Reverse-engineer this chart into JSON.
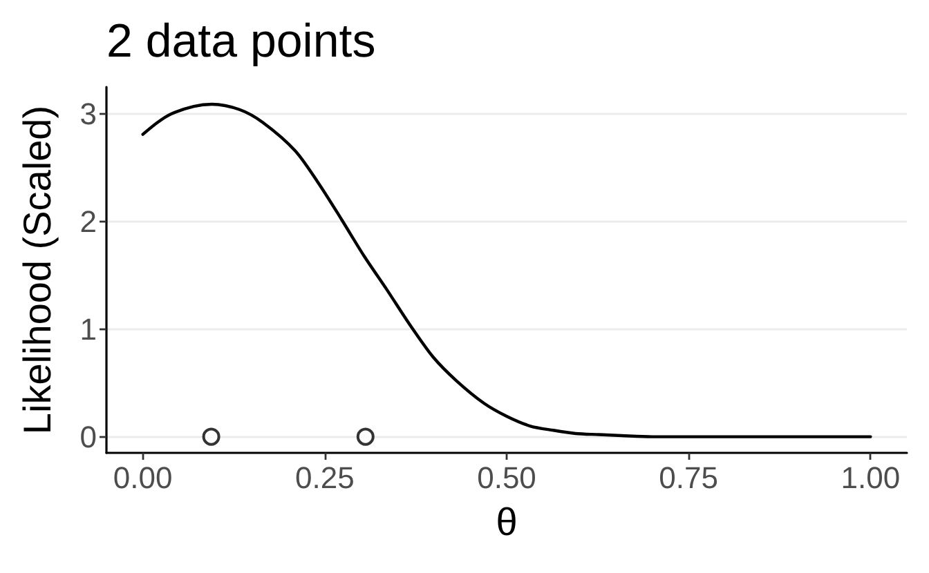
{
  "chart_data": {
    "type": "line",
    "title": "2 data points",
    "xlabel": "θ",
    "ylabel": "Likelihood (Scaled)",
    "xlim": [
      -0.05,
      1.05
    ],
    "xticks": [
      {
        "value": 0,
        "label": "0.00"
      },
      {
        "value": 0.25,
        "label": "0.25"
      },
      {
        "value": 0.5,
        "label": "0.50"
      },
      {
        "value": 0.75,
        "label": "0.75"
      },
      {
        "value": 1,
        "label": "1.00"
      }
    ],
    "ylim": [
      -0.15,
      3.25
    ],
    "yticks": [
      0,
      1,
      2,
      3
    ],
    "grid": "y",
    "series": [
      {
        "color": "#000000",
        "marker": "none",
        "line_style": "solid",
        "x": [
          0,
          0.02,
          0.039,
          0.07,
          0.095,
          0.133,
          0.165,
          0.209,
          0.241,
          0.273,
          0.304,
          0.336,
          0.368,
          0.399,
          0.431,
          0.469,
          0.5,
          0.532,
          0.564,
          0.595,
          0.627,
          0.658,
          0.7,
          0.8,
          0.9,
          1
        ],
        "values": [
          2.81,
          2.92,
          3.0,
          3.07,
          3.09,
          3.04,
          2.92,
          2.66,
          2.36,
          2.02,
          1.68,
          1.36,
          1.03,
          0.74,
          0.52,
          0.31,
          0.19,
          0.1,
          0.06,
          0.03,
          0.02,
          0.01,
          0,
          0,
          0,
          0
        ]
      },
      {
        "type": "scatter",
        "color": "#000000",
        "marker": "circle",
        "x": [
          0.094,
          0.306
        ],
        "values": [
          0,
          0
        ]
      }
    ]
  }
}
